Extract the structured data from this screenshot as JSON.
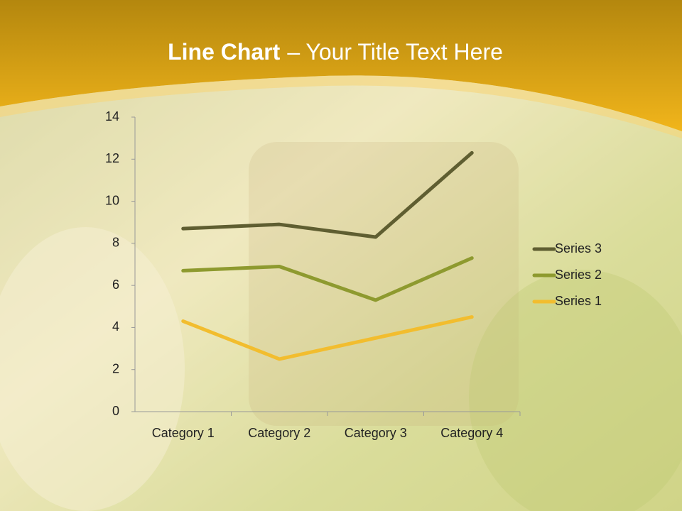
{
  "chart_data": {
    "type": "line",
    "stacked": true,
    "title": {
      "bold": "Line Chart",
      "rest": "– Your Title Text Here"
    },
    "categories": [
      "Category 1",
      "Category 2",
      "Category 3",
      "Category 4"
    ],
    "series": [
      {
        "name": "Series 1",
        "color": "#f2bd2e",
        "values": [
          4.3,
          2.5,
          3.5,
          4.5
        ]
      },
      {
        "name": "Series 2",
        "color": "#8e9a2f",
        "values": [
          2.4,
          4.4,
          1.8,
          2.8
        ]
      },
      {
        "name": "Series 3",
        "color": "#5f5e31",
        "values": [
          2,
          2,
          3,
          5
        ]
      }
    ],
    "ylim": [
      0,
      14
    ],
    "yticks": [
      0,
      2,
      4,
      6,
      8,
      10,
      12,
      14
    ],
    "grid": false,
    "legend": "right"
  }
}
